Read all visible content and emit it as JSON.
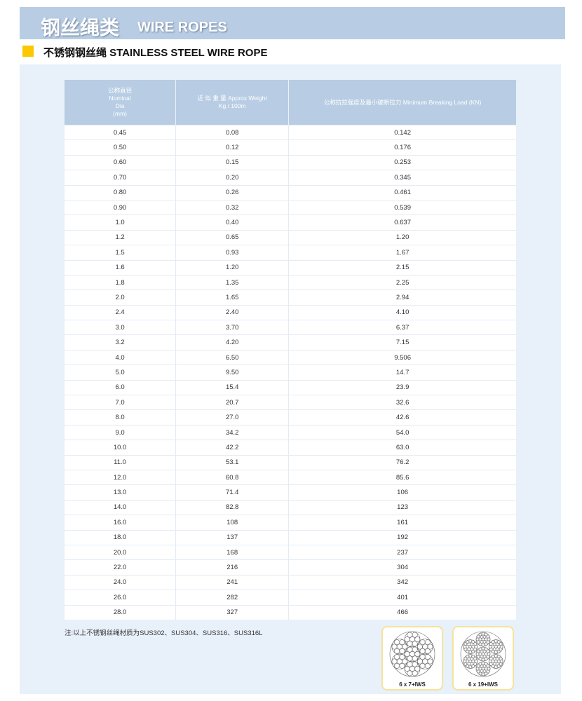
{
  "header": {
    "title_cn": "钢丝绳类",
    "title_en": "WIRE ROPES"
  },
  "section": {
    "title": "不锈钢钢丝绳 STAINLESS STEEL WIRE ROPE"
  },
  "table": {
    "headers": [
      "公称直径\nNominal\nDia\n(mm)",
      "近 似 重 量 Approx Weight\nKg / 100m",
      "公称抗拉强度及最小破断拉力 Minimum Breaking Load (KN)"
    ],
    "rows": [
      [
        "0.45",
        "0.08",
        "0.142"
      ],
      [
        "0.50",
        "0.12",
        "0.176"
      ],
      [
        "0.60",
        "0.15",
        "0.253"
      ],
      [
        "0.70",
        "0.20",
        "0.345"
      ],
      [
        "0.80",
        "0.26",
        "0.461"
      ],
      [
        "0.90",
        "0.32",
        "0.539"
      ],
      [
        "1.0",
        "0.40",
        "0.637"
      ],
      [
        "1.2",
        "0.65",
        "1.20"
      ],
      [
        "1.5",
        "0.93",
        "1.67"
      ],
      [
        "1.6",
        "1.20",
        "2.15"
      ],
      [
        "1.8",
        "1.35",
        "2.25"
      ],
      [
        "2.0",
        "1.65",
        "2.94"
      ],
      [
        "2.4",
        "2.40",
        "4.10"
      ],
      [
        "3.0",
        "3.70",
        "6.37"
      ],
      [
        "3.2",
        "4.20",
        "7.15"
      ],
      [
        "4.0",
        "6.50",
        "9.506"
      ],
      [
        "5.0",
        "9.50",
        "14.7"
      ],
      [
        "6.0",
        "15.4",
        "23.9"
      ],
      [
        "7.0",
        "20.7",
        "32.6"
      ],
      [
        "8.0",
        "27.0",
        "42.6"
      ],
      [
        "9.0",
        "34.2",
        "54.0"
      ],
      [
        "10.0",
        "42.2",
        "63.0"
      ],
      [
        "11.0",
        "53.1",
        "76.2"
      ],
      [
        "12.0",
        "60.8",
        "85.6"
      ],
      [
        "13.0",
        "71.4",
        "106"
      ],
      [
        "14.0",
        "82.8",
        "123"
      ],
      [
        "16.0",
        "108",
        "161"
      ],
      [
        "18.0",
        "137",
        "192"
      ],
      [
        "20.0",
        "168",
        "237"
      ],
      [
        "22.0",
        "216",
        "304"
      ],
      [
        "24.0",
        "241",
        "342"
      ],
      [
        "26.0",
        "282",
        "401"
      ],
      [
        "28.0",
        "327",
        "466"
      ]
    ]
  },
  "note": "注:以上不锈钢丝绳材质为SUS302、SUS304、SUS316、SUS316L",
  "figures": [
    {
      "label": "6 x 7+IWS",
      "strand_wires": 7
    },
    {
      "label": "6 x 19+IWS",
      "strand_wires": 19
    }
  ],
  "colors": {
    "band": "#b8cde4",
    "panel": "#e8f0fa",
    "accent": "#fcc800"
  }
}
